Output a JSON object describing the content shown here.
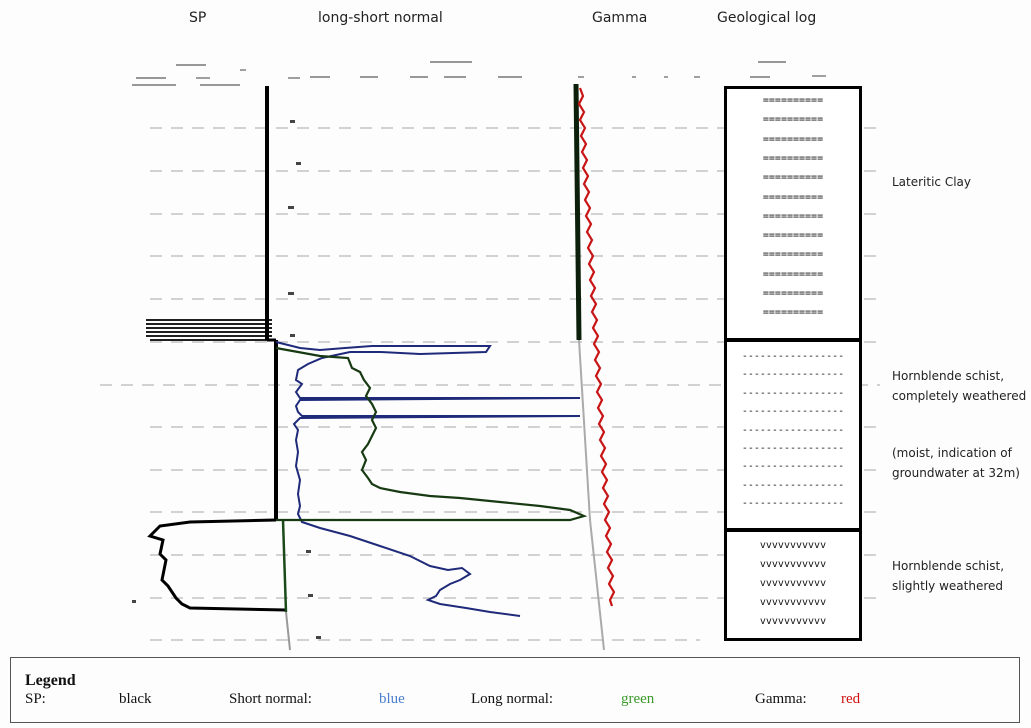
{
  "headers": {
    "sp": "SP",
    "resistivity": "long-short normal",
    "gamma": "Gamma",
    "geolog": "Geological log"
  },
  "layers": [
    {
      "id": "lateritic",
      "pattern": "==========",
      "rows": 12,
      "description": "Lateritic Clay"
    },
    {
      "id": "completely",
      "pattern": "-----------------",
      "rows": 9,
      "description": "Hornblende schist, completely weathered",
      "note": "(moist, indication of groundwater at 32m)"
    },
    {
      "id": "slightly",
      "pattern": "vvvvvvvvvvv",
      "rows": 5,
      "description": "Hornblende schist, slightly weathered"
    }
  ],
  "groundwater": {
    "symbol": "inverted-triangle",
    "color": "#7aa7dd"
  },
  "legend": {
    "title": "Legend",
    "sp_label": "SP:",
    "sp_value": "black",
    "short_label": "Short normal:",
    "short_value": "blue",
    "long_label": "Long normal:",
    "long_value": "green",
    "gamma_label": "Gamma:",
    "gamma_value": "red"
  },
  "colors": {
    "sp": "#000000",
    "short_normal": "#1f2a7a",
    "long_normal": "#173a12",
    "gamma": "#c81414",
    "short_text": "#4a7fd0",
    "long_text": "#3a9a2a",
    "gamma_text": "#d01010"
  }
}
